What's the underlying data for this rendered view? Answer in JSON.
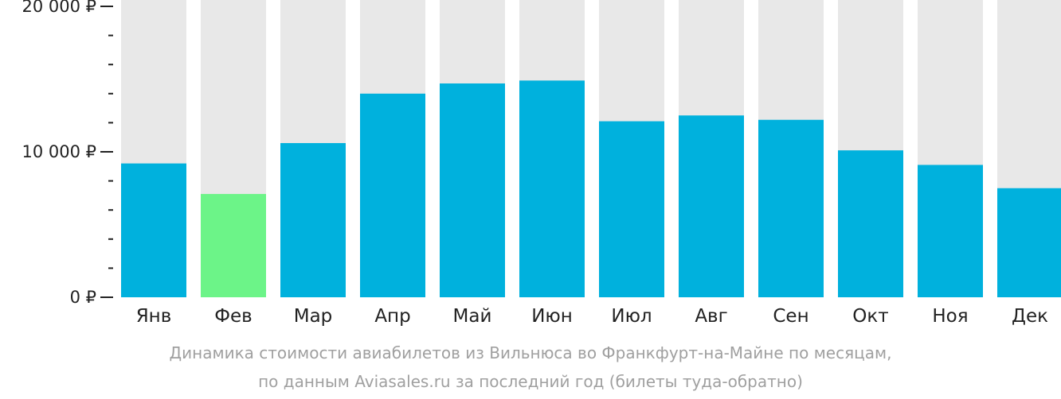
{
  "chart_data": {
    "type": "bar",
    "categories": [
      "Янв",
      "Фев",
      "Мар",
      "Апр",
      "Май",
      "Июн",
      "Июл",
      "Авг",
      "Сен",
      "Окт",
      "Ноя",
      "Дек"
    ],
    "values": [
      9200,
      7100,
      10600,
      14000,
      14700,
      14900,
      12100,
      12500,
      12200,
      10100,
      9100,
      7500
    ],
    "highlight_index": 1,
    "ylim": [
      0,
      20000
    ],
    "y_ticks": [
      {
        "value": 0,
        "label": "0 ₽"
      },
      {
        "value": 10000,
        "label": "10 000 ₽"
      },
      {
        "value": 20000,
        "label": "20 000 ₽"
      }
    ],
    "minor_tick_step": 2000,
    "grid": false,
    "colors": {
      "bar": "#00b1dd",
      "bar_highlight": "#6cf488",
      "bar_background": "#e8e8e8",
      "axis": "#222222"
    },
    "caption": {
      "line1": "Динамика стоимости авиабилетов из Вильнюса во Франкфурт-на-Майне по месяцам,",
      "line2": "по данным Aviasales.ru за последний год (билеты туда-обратно)"
    }
  }
}
